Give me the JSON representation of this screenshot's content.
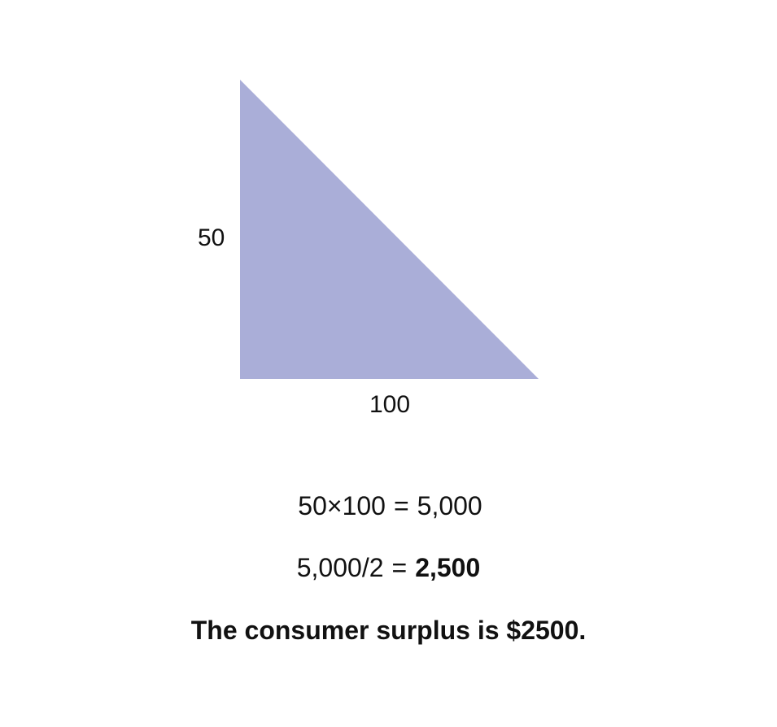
{
  "diagram": {
    "fill_color": "#aaaed8",
    "height_label": "50",
    "base_label": "100"
  },
  "calculation": {
    "line1_expression": "50×100",
    "line1_equals": "=",
    "line1_result": "5,000",
    "line2_expression": "5,000/2",
    "line2_equals": "=",
    "line2_result": "2,500"
  },
  "conclusion": "The consumer surplus is $2500."
}
